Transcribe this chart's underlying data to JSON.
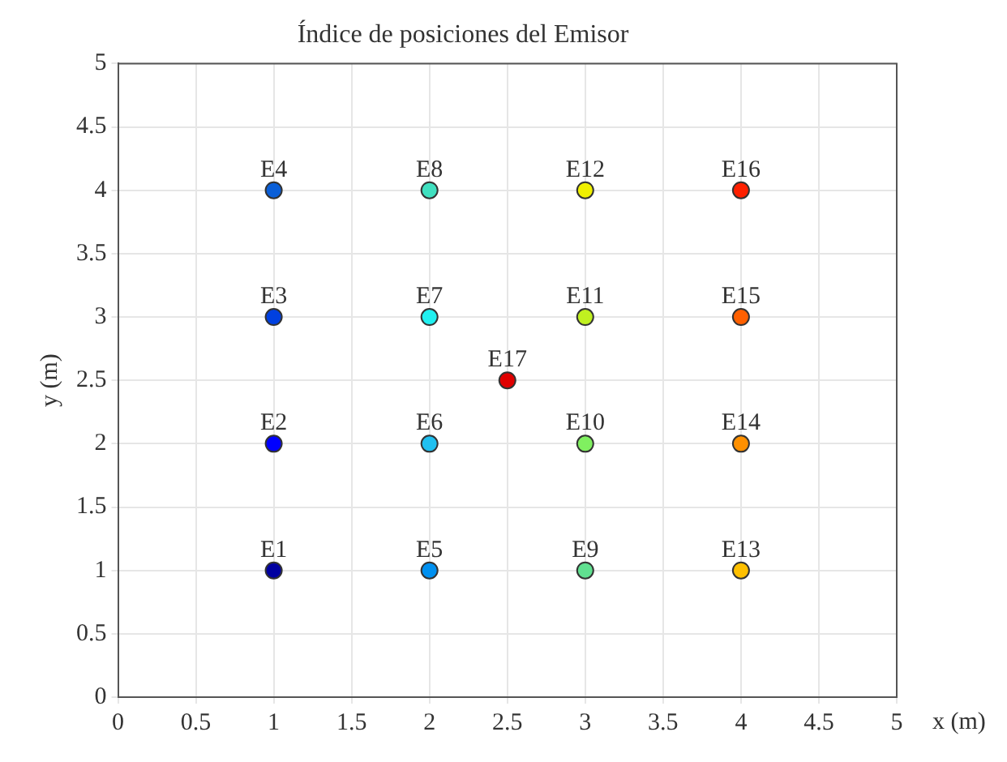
{
  "chart_data": {
    "type": "scatter",
    "title": "Índice de posiciones del Emisor",
    "xlabel": "x (m)",
    "ylabel": "y (m)",
    "xlim": [
      0,
      5
    ],
    "ylim": [
      0,
      5
    ],
    "xticks": [
      0,
      0.5,
      1,
      1.5,
      2,
      2.5,
      3,
      3.5,
      4,
      4.5,
      5
    ],
    "yticks": [
      0,
      0.5,
      1,
      1.5,
      2,
      2.5,
      3,
      3.5,
      4,
      4.5,
      5
    ],
    "grid": true,
    "legend": false,
    "marker": "circle",
    "series": [
      {
        "name": "E1",
        "color": "#0000a0",
        "x": [
          1
        ],
        "values": [
          1
        ]
      },
      {
        "name": "E2",
        "color": "#0000ff",
        "x": [
          1
        ],
        "values": [
          2
        ]
      },
      {
        "name": "E3",
        "color": "#0040e0",
        "x": [
          1
        ],
        "values": [
          3
        ]
      },
      {
        "name": "E4",
        "color": "#0a5fd8",
        "x": [
          1
        ],
        "values": [
          4
        ]
      },
      {
        "name": "E5",
        "color": "#0090f0",
        "x": [
          2
        ],
        "values": [
          1
        ]
      },
      {
        "name": "E6",
        "color": "#20c0f0",
        "x": [
          2
        ],
        "values": [
          2
        ]
      },
      {
        "name": "E7",
        "color": "#20f0f0",
        "x": [
          2
        ],
        "values": [
          3
        ]
      },
      {
        "name": "E8",
        "color": "#40e0c0",
        "x": [
          2
        ],
        "values": [
          4
        ]
      },
      {
        "name": "E9",
        "color": "#60e090",
        "x": [
          3
        ],
        "values": [
          1
        ]
      },
      {
        "name": "E10",
        "color": "#80f060",
        "x": [
          3
        ],
        "values": [
          2
        ]
      },
      {
        "name": "E11",
        "color": "#c0f020",
        "x": [
          3
        ],
        "values": [
          3
        ]
      },
      {
        "name": "E12",
        "color": "#f0f000",
        "x": [
          3
        ],
        "values": [
          4
        ]
      },
      {
        "name": "E13",
        "color": "#ffc000",
        "x": [
          4
        ],
        "values": [
          1
        ]
      },
      {
        "name": "E14",
        "color": "#ff9000",
        "x": [
          4
        ],
        "values": [
          2
        ]
      },
      {
        "name": "E15",
        "color": "#ff6000",
        "x": [
          4
        ],
        "values": [
          3
        ]
      },
      {
        "name": "E16",
        "color": "#ff2000",
        "x": [
          4
        ],
        "values": [
          4
        ]
      },
      {
        "name": "E17",
        "color": "#e00000",
        "x": [
          2.5
        ],
        "values": [
          2.5
        ]
      }
    ]
  }
}
